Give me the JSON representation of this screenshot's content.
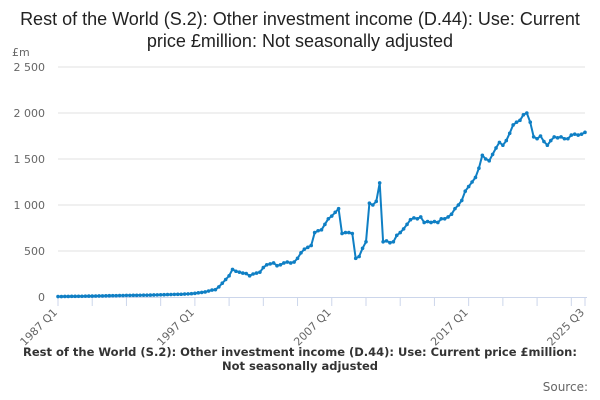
{
  "chart_data": {
    "type": "line",
    "title": "Rest of the World (S.2): Other investment income (D.44): Use: Current price £million: Not seasonally adjusted",
    "ylabel": "£m",
    "xlabel": "",
    "ylim": [
      0,
      2500
    ],
    "yticks": [
      "0",
      "500",
      "1 000",
      "1 500",
      "2 000",
      "2 500"
    ],
    "ytick_values": [
      0,
      500,
      1000,
      1500,
      2000,
      2500
    ],
    "xtick_labels": [
      "1987 Q1",
      "1997 Q1",
      "2007 Q1",
      "2017 Q1",
      "2025 Q3"
    ],
    "x_start": "1987 Q1",
    "x_end": "2025 Q3",
    "grid": true,
    "color": "#0f7fc4",
    "values": [
      5,
      5,
      6,
      6,
      7,
      7,
      8,
      8,
      9,
      10,
      10,
      11,
      12,
      12,
      13,
      14,
      15,
      15,
      16,
      16,
      17,
      17,
      18,
      18,
      19,
      20,
      20,
      21,
      22,
      23,
      24,
      25,
      26,
      27,
      28,
      29,
      30,
      32,
      34,
      36,
      40,
      45,
      50,
      55,
      65,
      75,
      80,
      110,
      150,
      190,
      230,
      300,
      280,
      270,
      260,
      255,
      230,
      250,
      260,
      270,
      320,
      350,
      360,
      370,
      340,
      350,
      370,
      380,
      370,
      380,
      420,
      480,
      520,
      540,
      560,
      700,
      720,
      730,
      790,
      850,
      880,
      920,
      960,
      690,
      700,
      700,
      690,
      420,
      440,
      530,
      600,
      1020,
      1000,
      1040,
      1240,
      600,
      610,
      590,
      600,
      670,
      700,
      740,
      790,
      840,
      860,
      850,
      870,
      810,
      820,
      810,
      820,
      810,
      850,
      850,
      870,
      900,
      960,
      1000,
      1050,
      1150,
      1200,
      1250,
      1300,
      1400,
      1540,
      1500,
      1480,
      1550,
      1620,
      1680,
      1650,
      1700,
      1780,
      1870,
      1900,
      1920,
      1980,
      2000,
      1900,
      1740,
      1720,
      1750,
      1690,
      1650,
      1700,
      1740,
      1730,
      1740,
      1720,
      1720,
      1760,
      1770,
      1760,
      1770,
      1790
    ]
  },
  "footer": {
    "title": "Rest of the World (S.2): Other investment income (D.44): Use: Current price £million: Not seasonally adjusted",
    "source_label": "Source:"
  }
}
